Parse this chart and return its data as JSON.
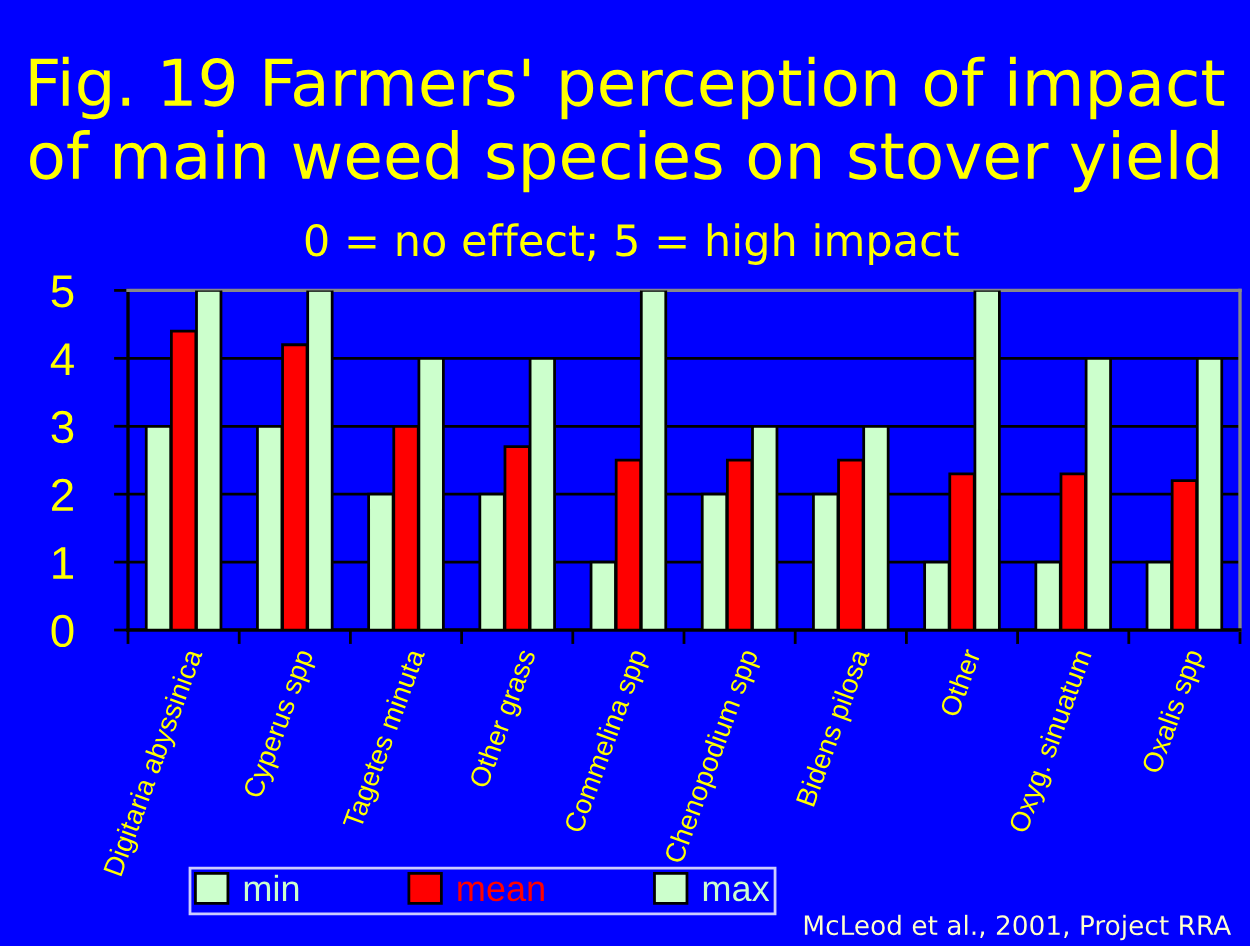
{
  "chart_data": {
    "type": "bar",
    "title": "Fig. 19 Farmers' perception of impact\nof main weed species on stover yield",
    "subtitle": "0 = no effect; 5 = high impact",
    "categories": [
      "Digitaria abyssinica",
      "Cyperus spp",
      "Tagetes minuta",
      "Other grass",
      "Commelina spp",
      "Chenopodium spp",
      "Bidens pilosa",
      "Other",
      "Oxyg. sinuatum",
      "Oxalis spp"
    ],
    "series": [
      {
        "name": "min",
        "color": "#ccffcc",
        "values": [
          3,
          3,
          2,
          2,
          1,
          2,
          2,
          1,
          1,
          1
        ]
      },
      {
        "name": "mean",
        "color": "#ff0000",
        "values": [
          4.4,
          4.2,
          3.0,
          2.7,
          2.5,
          2.5,
          2.5,
          2.3,
          2.3,
          2.2
        ]
      },
      {
        "name": "max",
        "color": "#ccffcc",
        "values": [
          5,
          5,
          4,
          4,
          5,
          3,
          3,
          5,
          4,
          4
        ]
      }
    ],
    "ylim": [
      0,
      5
    ],
    "yticks": [
      0,
      1,
      2,
      3,
      4,
      5
    ],
    "grid": "y",
    "legend": "bottom left",
    "annotations": [
      "McLeod et al., 2001, Project RRA"
    ]
  }
}
